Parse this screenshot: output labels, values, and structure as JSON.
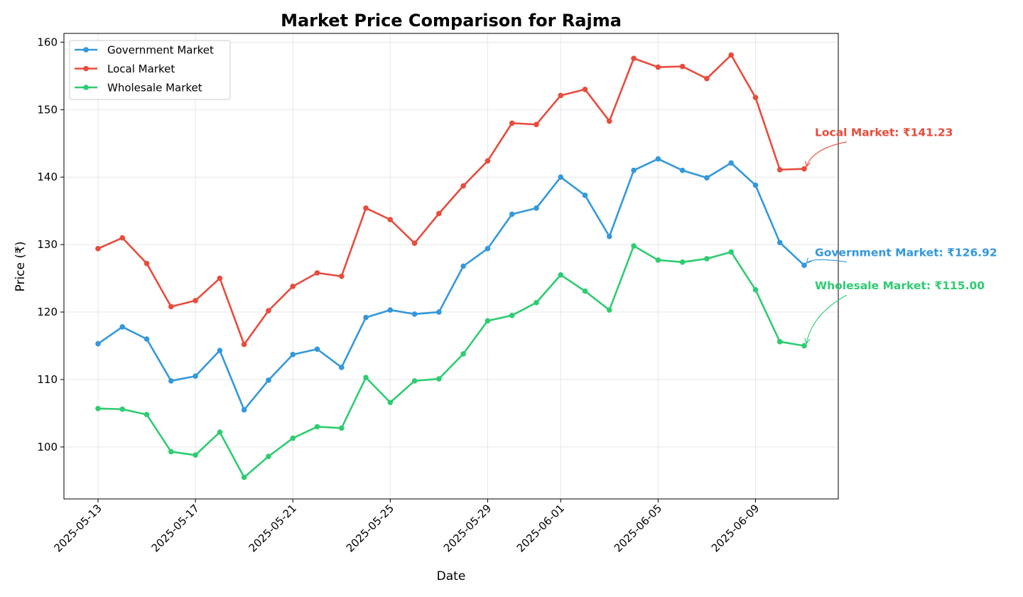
{
  "chart_data": {
    "type": "line",
    "title": "Market Price Comparison for Rajma",
    "xlabel": "Date",
    "ylabel": "Price (₹)",
    "ylim": [
      92.3,
      161.3
    ],
    "xlim": [
      "2025-05-11 14:24",
      "2025-06-12 09:36"
    ],
    "grid": true,
    "legend_position": "upper-left",
    "x": [
      "2025-05-13",
      "2025-05-14",
      "2025-05-15",
      "2025-05-16",
      "2025-05-17",
      "2025-05-18",
      "2025-05-19",
      "2025-05-20",
      "2025-05-21",
      "2025-05-22",
      "2025-05-23",
      "2025-05-24",
      "2025-05-25",
      "2025-05-26",
      "2025-05-27",
      "2025-05-28",
      "2025-05-29",
      "2025-05-30",
      "2025-05-31",
      "2025-06-01",
      "2025-06-02",
      "2025-06-03",
      "2025-06-04",
      "2025-06-05",
      "2025-06-06",
      "2025-06-07",
      "2025-06-08",
      "2025-06-09",
      "2025-06-10",
      "2025-06-11"
    ],
    "x_ticks": [
      "2025-05-13",
      "2025-05-17",
      "2025-05-21",
      "2025-05-25",
      "2025-05-29",
      "2025-06-01",
      "2025-06-05",
      "2025-06-09"
    ],
    "y_ticks": [
      100,
      110,
      120,
      130,
      140,
      150,
      160
    ],
    "series": [
      {
        "name": "Government Market",
        "color": "#3498db",
        "values": [
          115.3,
          117.8,
          116.0,
          109.8,
          110.5,
          114.3,
          105.5,
          109.9,
          113.7,
          114.5,
          111.8,
          119.2,
          120.3,
          119.7,
          120.0,
          126.8,
          129.4,
          134.5,
          135.4,
          140.0,
          137.3,
          131.2,
          141.0,
          142.7,
          141.0,
          139.9,
          142.1,
          138.8,
          130.3,
          126.92
        ]
      },
      {
        "name": "Local Market",
        "color": "#e74c3c",
        "values": [
          129.4,
          131.0,
          127.2,
          120.8,
          121.7,
          125.0,
          115.2,
          120.2,
          123.8,
          125.8,
          125.3,
          135.4,
          133.7,
          130.2,
          134.6,
          138.7,
          142.4,
          148.0,
          147.8,
          152.1,
          153.0,
          148.3,
          157.6,
          156.3,
          156.4,
          154.6,
          158.1,
          151.8,
          141.1,
          141.23
        ]
      },
      {
        "name": "Wholesale Market",
        "color": "#2ecc71",
        "values": [
          105.7,
          105.6,
          104.8,
          99.3,
          98.8,
          102.2,
          95.5,
          98.6,
          101.3,
          103.0,
          102.8,
          110.3,
          106.6,
          109.8,
          110.1,
          113.8,
          118.7,
          119.5,
          121.4,
          125.5,
          123.1,
          120.3,
          129.8,
          127.7,
          127.4,
          127.9,
          128.9,
          123.3,
          115.6,
          115.0
        ]
      }
    ],
    "annotations": [
      {
        "text": "Local Market: ₹141.23",
        "color": "#e74c3c",
        "x": "2025-06-11",
        "y": 141.23,
        "text_y": 146.7
      },
      {
        "text": "Government Market: ₹126.92",
        "color": "#3498db",
        "x": "2025-06-11",
        "y": 126.92,
        "text_y": 128.9
      },
      {
        "text": "Wholesale Market: ₹115.00",
        "color": "#2ecc71",
        "x": "2025-06-11",
        "y": 115.0,
        "text_y": 124.0
      }
    ]
  }
}
